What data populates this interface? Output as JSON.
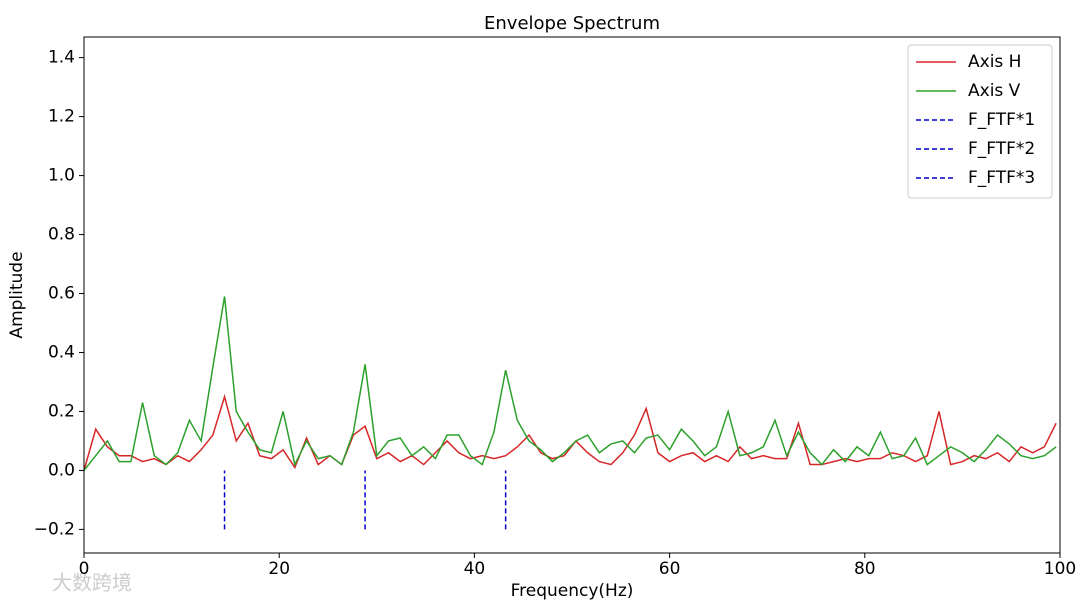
{
  "chart_data": {
    "type": "line",
    "title": "Envelope Spectrum",
    "xlabel": "Frequency(Hz)",
    "ylabel": "Amplitude",
    "x": [
      0,
      1.2,
      2.4,
      3.6,
      4.8,
      6,
      7.2,
      8.4,
      9.6,
      10.8,
      12,
      13.2,
      14.4,
      15.6,
      16.8,
      18,
      19.2,
      20.4,
      21.6,
      22.8,
      24,
      25.2,
      26.4,
      27.6,
      28.8,
      30,
      31.2,
      32.4,
      33.6,
      34.8,
      36,
      37.2,
      38.4,
      39.6,
      40.8,
      42,
      43.2,
      44.4,
      45.6,
      46.8,
      48,
      49.2,
      50.4,
      51.6,
      52.8,
      54,
      55.2,
      56.4,
      57.6,
      58.8,
      60,
      61.2,
      62.4,
      63.6,
      64.8,
      66,
      67.2,
      68.4,
      69.6,
      70.8,
      72,
      73.2,
      74.4,
      75.6,
      76.8,
      78,
      79.2,
      80.4,
      81.6,
      82.8,
      84,
      85.2,
      86.4,
      87.6,
      88.8,
      90,
      91.2,
      92.4,
      93.6,
      94.8,
      96,
      97.2,
      98.4,
      99.6
    ],
    "series": [
      {
        "name": "Axis H",
        "color": "#d62728",
        "values": [
          0.0,
          0.14,
          0.08,
          0.05,
          0.05,
          0.03,
          0.04,
          0.02,
          0.05,
          0.03,
          0.07,
          0.12,
          0.25,
          0.1,
          0.16,
          0.05,
          0.04,
          0.07,
          0.01,
          0.11,
          0.02,
          0.05,
          0.02,
          0.12,
          0.15,
          0.04,
          0.06,
          0.03,
          0.05,
          0.02,
          0.06,
          0.1,
          0.06,
          0.04,
          0.05,
          0.04,
          0.05,
          0.08,
          0.12,
          0.06,
          0.04,
          0.05,
          0.1,
          0.06,
          0.03,
          0.02,
          0.06,
          0.12,
          0.21,
          0.06,
          0.03,
          0.05,
          0.06,
          0.03,
          0.05,
          0.03,
          0.08,
          0.04,
          0.05,
          0.04,
          0.04,
          0.16,
          0.02,
          0.02,
          0.03,
          0.04,
          0.03,
          0.04,
          0.04,
          0.06,
          0.05,
          0.03,
          0.05,
          0.2,
          0.02,
          0.03,
          0.05,
          0.04,
          0.06,
          0.03,
          0.08,
          0.06,
          0.08,
          0.16
        ]
      },
      {
        "name": "Axis V",
        "color": "#2ca02c",
        "values": [
          0.0,
          0.05,
          0.1,
          0.03,
          0.03,
          0.23,
          0.05,
          0.02,
          0.06,
          0.17,
          0.1,
          0.35,
          0.59,
          0.2,
          0.13,
          0.07,
          0.06,
          0.2,
          0.02,
          0.1,
          0.04,
          0.05,
          0.02,
          0.13,
          0.36,
          0.05,
          0.1,
          0.11,
          0.05,
          0.08,
          0.04,
          0.12,
          0.12,
          0.05,
          0.02,
          0.13,
          0.34,
          0.17,
          0.1,
          0.07,
          0.03,
          0.06,
          0.1,
          0.12,
          0.06,
          0.09,
          0.1,
          0.06,
          0.11,
          0.12,
          0.07,
          0.14,
          0.1,
          0.05,
          0.08,
          0.2,
          0.05,
          0.06,
          0.08,
          0.17,
          0.05,
          0.13,
          0.06,
          0.02,
          0.07,
          0.03,
          0.08,
          0.05,
          0.13,
          0.04,
          0.05,
          0.11,
          0.02,
          0.05,
          0.08,
          0.06,
          0.03,
          0.07,
          0.12,
          0.09,
          0.05,
          0.04,
          0.05,
          0.08
        ]
      }
    ],
    "markers": [
      {
        "name": "F_FTF*1",
        "color": "#0000cc",
        "x": 14.4,
        "y": [
          -0.2,
          0
        ]
      },
      {
        "name": "F_FTF*2",
        "color": "#0000cc",
        "x": 28.8,
        "y": [
          -0.2,
          0
        ]
      },
      {
        "name": "F_FTF*3",
        "color": "#0000cc",
        "x": 43.2,
        "y": [
          -0.2,
          0
        ]
      }
    ],
    "xlim": [
      0,
      100
    ],
    "xticks": [
      0,
      20,
      40,
      60,
      80,
      100
    ],
    "ylim": [
      -0.28,
      1.47
    ],
    "yticks": [
      {
        "value": -0.2,
        "label": "−0.2"
      },
      {
        "value": 0,
        "label": "0.0"
      },
      0.2,
      0.4,
      0.6,
      0.8,
      {
        "value": 1,
        "label": "1.0"
      },
      1.2,
      1.4
    ],
    "legend": "upper right",
    "grid": false,
    "watermark": "大数跨境"
  }
}
